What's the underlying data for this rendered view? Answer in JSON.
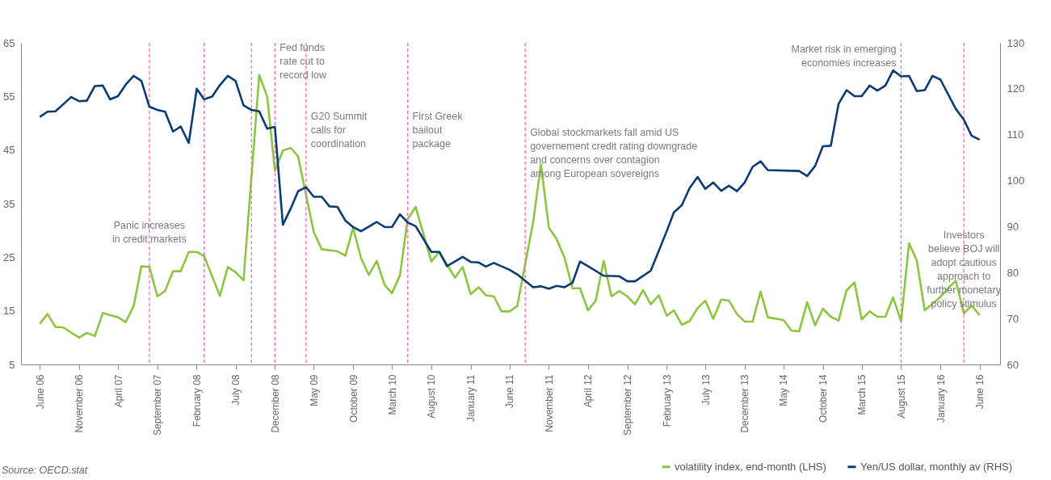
{
  "chart_data": {
    "type": "line",
    "xlim": [
      "2006-03-20",
      "2016-08-20"
    ],
    "xticks": [
      {
        "value": "2006-06",
        "label": "June 06"
      },
      {
        "value": "2006-11",
        "label": "November 06"
      },
      {
        "value": "2007-04",
        "label": "April 07"
      },
      {
        "value": "2007-09",
        "label": "September 07"
      },
      {
        "value": "2008-02",
        "label": "February 08"
      },
      {
        "value": "2008-07",
        "label": "July 08"
      },
      {
        "value": "2008-12",
        "label": "December 08"
      },
      {
        "value": "2009-05",
        "label": "May 09"
      },
      {
        "value": "2009-10",
        "label": "October 09"
      },
      {
        "value": "2010-03",
        "label": "March 10"
      },
      {
        "value": "2010-08",
        "label": "August 10"
      },
      {
        "value": "2011-01",
        "label": "January 11"
      },
      {
        "value": "2011-06",
        "label": "June 11"
      },
      {
        "value": "2011-11",
        "label": "November 11"
      },
      {
        "value": "2012-04",
        "label": "April 12"
      },
      {
        "value": "2012-09",
        "label": "September 12"
      },
      {
        "value": "2013-02",
        "label": "February 13"
      },
      {
        "value": "2013-07",
        "label": "July 13"
      },
      {
        "value": "2013-12",
        "label": "December 13"
      },
      {
        "value": "2014-05",
        "label": "May 14"
      },
      {
        "value": "2014-10",
        "label": "October 14"
      },
      {
        "value": "2015-03",
        "label": "March 15"
      },
      {
        "value": "2015-08",
        "label": "August 15"
      },
      {
        "value": "2016-01",
        "label": "January 16"
      },
      {
        "value": "2016-06",
        "label": "June 16"
      }
    ],
    "ylim": [
      5,
      65
    ],
    "yticks": [
      5,
      15,
      25,
      35,
      45,
      55,
      65
    ],
    "y2lim": [
      60,
      130
    ],
    "y2ticks": [
      60,
      70,
      80,
      90,
      100,
      110,
      120,
      130
    ],
    "grid": false,
    "legend": "bottom right",
    "line_style": "solid",
    "series": [
      {
        "name": "volatility index, end-month (LHS)",
        "color": "#8cc63f",
        "axis": "y",
        "x": [
          "2006-06",
          "2006-07",
          "2006-08",
          "2006-09",
          "2006-11",
          "2006-12",
          "2007-01",
          "2007-02",
          "2007-03",
          "2007-04",
          "2007-05",
          "2007-06",
          "2007-07",
          "2007-08",
          "2007-09",
          "2007-10",
          "2007-11",
          "2007-12",
          "2008-01",
          "2008-02",
          "2008-03",
          "2008-05",
          "2008-06",
          "2008-07",
          "2008-08",
          "2008-10",
          "2008-11",
          "2008-12",
          "2009-01",
          "2009-02",
          "2009-03",
          "2009-05",
          "2009-06",
          "2009-08",
          "2009-09",
          "2009-10",
          "2009-11",
          "2009-12",
          "2010-01",
          "2010-02",
          "2010-03",
          "2010-04",
          "2010-05",
          "2010-06",
          "2010-08",
          "2010-09",
          "2010-11",
          "2010-12",
          "2011-01",
          "2011-02",
          "2011-03",
          "2011-04",
          "2011-05",
          "2011-06",
          "2011-07",
          "2011-09",
          "2011-10",
          "2011-11",
          "2011-12",
          "2012-01",
          "2012-02",
          "2012-03",
          "2012-04",
          "2012-05",
          "2012-06",
          "2012-07",
          "2012-08",
          "2012-09",
          "2012-10",
          "2012-11",
          "2012-12",
          "2013-01",
          "2013-02",
          "2013-03",
          "2013-04",
          "2013-05",
          "2013-06",
          "2013-07",
          "2013-08",
          "2013-09",
          "2013-10",
          "2013-11",
          "2013-12",
          "2014-01",
          "2014-02",
          "2014-03",
          "2014-05",
          "2014-06",
          "2014-07",
          "2014-08",
          "2014-09",
          "2014-10",
          "2014-11",
          "2014-12",
          "2015-01",
          "2015-02",
          "2015-03",
          "2015-04",
          "2015-05",
          "2015-06",
          "2015-07",
          "2015-08",
          "2015-09",
          "2015-10",
          "2015-11",
          "2015-12",
          "2016-01",
          "2016-02",
          "2016-03",
          "2016-04",
          "2016-05",
          "2016-06"
        ],
        "values": [
          12.6,
          14.4,
          12.0,
          11.9,
          10.0,
          10.9,
          10.3,
          14.6,
          14.2,
          13.8,
          12.9,
          15.9,
          23.3,
          23.2,
          17.7,
          18.7,
          22.4,
          22.4,
          26.0,
          26.0,
          25.2,
          17.8,
          23.2,
          22.2,
          20.7,
          59.0,
          55.0,
          41.1,
          44.9,
          45.4,
          43.8,
          29.7,
          26.5,
          26.1,
          25.3,
          30.5,
          24.8,
          21.7,
          24.3,
          19.8,
          18.3,
          21.6,
          32.1,
          34.4,
          24.2,
          26.0,
          21.2,
          23.2,
          18.1,
          19.4,
          17.9,
          17.7,
          14.9,
          14.9,
          15.9,
          31.6,
          42.3,
          30.5,
          28.4,
          24.9,
          19.2,
          19.2,
          15.1,
          16.9,
          24.3,
          17.7,
          18.7,
          17.7,
          16.2,
          18.9,
          16.2,
          17.9,
          14.1,
          15.1,
          12.4,
          13.1,
          15.5,
          16.9,
          13.5,
          17.1,
          16.9,
          14.4,
          13.0,
          13.0,
          18.6,
          13.8,
          13.3,
          11.3,
          11.2,
          16.6,
          12.3,
          15.4,
          13.9,
          13.2,
          18.8,
          20.3,
          13.4,
          14.9,
          13.9,
          13.9,
          17.5,
          13.1,
          27.6,
          24.4,
          15.1,
          16.3,
          17.6,
          19.3,
          20.6,
          14.5,
          16.0,
          14.2
        ]
      },
      {
        "name": "Yen/US dollar, monthly av (RHS)",
        "color": "#0b3b74",
        "axis": "y2",
        "x": [
          "2006-06",
          "2006-07",
          "2006-08",
          "2006-10",
          "2006-11",
          "2006-12",
          "2007-01",
          "2007-02",
          "2007-03",
          "2007-04",
          "2007-05",
          "2007-06",
          "2007-07",
          "2007-08",
          "2007-09",
          "2007-10",
          "2007-11",
          "2007-12",
          "2008-01",
          "2008-02",
          "2008-03",
          "2008-04",
          "2008-05",
          "2008-06",
          "2008-07",
          "2008-08",
          "2008-09",
          "2008-10",
          "2008-11",
          "2008-12",
          "2009-01",
          "2009-02",
          "2009-03",
          "2009-04",
          "2009-05",
          "2009-06",
          "2009-07",
          "2009-08",
          "2009-09",
          "2009-10",
          "2009-11",
          "2010-01",
          "2010-02",
          "2010-03",
          "2010-04",
          "2010-05",
          "2010-06",
          "2010-08",
          "2010-09",
          "2010-10",
          "2010-12",
          "2011-01",
          "2011-02",
          "2011-03",
          "2011-04",
          "2011-06",
          "2011-07",
          "2011-09",
          "2011-10",
          "2011-11",
          "2011-12",
          "2012-01",
          "2012-02",
          "2012-03",
          "2012-04",
          "2012-06",
          "2012-08",
          "2012-09",
          "2012-10",
          "2012-12",
          "2013-02",
          "2013-03",
          "2013-04",
          "2013-05",
          "2013-06",
          "2013-07",
          "2013-08",
          "2013-09",
          "2013-10",
          "2013-11",
          "2013-12",
          "2014-01",
          "2014-02",
          "2014-03",
          "2014-07",
          "2014-08",
          "2014-09",
          "2014-10",
          "2014-11",
          "2014-12",
          "2015-01",
          "2015-02",
          "2015-03",
          "2015-04",
          "2015-05",
          "2015-06",
          "2015-07",
          "2015-08",
          "2015-09",
          "2015-10",
          "2015-11",
          "2015-12",
          "2016-01",
          "2016-03",
          "2016-04",
          "2016-05",
          "2016-06"
        ],
        "values": [
          113.9,
          115.0,
          115.1,
          118.2,
          117.3,
          117.4,
          120.6,
          120.7,
          117.7,
          118.4,
          120.9,
          122.8,
          121.7,
          116.1,
          115.4,
          115.0,
          110.7,
          111.8,
          108.2,
          120.0,
          117.7,
          118.3,
          120.8,
          122.8,
          121.7,
          116.4,
          115.4,
          115.1,
          111.3,
          111.7,
          90.4,
          94.0,
          97.7,
          98.6,
          96.5,
          96.5,
          94.4,
          94.3,
          91.3,
          89.9,
          89.0,
          91.0,
          89.9,
          89.9,
          92.7,
          90.9,
          90.1,
          84.5,
          84.5,
          81.4,
          83.4,
          82.3,
          82.2,
          81.3,
          82.1,
          80.6,
          79.6,
          76.8,
          77.0,
          76.5,
          77.1,
          76.8,
          77.8,
          82.4,
          81.4,
          79.3,
          79.2,
          78.1,
          78.1,
          80.4,
          89.0,
          93.1,
          94.7,
          98.4,
          100.8,
          98.2,
          99.6,
          97.8,
          98.9,
          97.7,
          99.6,
          103.0,
          104.2,
          102.3,
          102.1,
          101.0,
          103.2,
          107.5,
          107.6,
          116.7,
          119.7,
          118.4,
          118.4,
          120.7,
          119.6,
          120.7,
          124.0,
          122.7,
          122.8,
          119.5,
          119.7,
          122.8,
          122.0,
          115.6,
          113.3,
          109.8,
          108.9
        ]
      }
    ],
    "ref_lines": [
      {
        "axis": "x",
        "value": "2007-08",
        "color": "#ff69b4",
        "line_style": "dashed",
        "label": "Panic increases\nin credit markets"
      },
      {
        "axis": "x",
        "value": "2008-03",
        "color": "#ff69b4",
        "line_style": "dashed"
      },
      {
        "axis": "x",
        "value": "2008-09",
        "color": "#ff69b4",
        "line_style": "dashed"
      },
      {
        "axis": "x",
        "value": "2008-12",
        "color": "#ff69b4",
        "line_style": "dashed",
        "label": "Fed funds\nrate cut to\nrecord low"
      },
      {
        "axis": "x",
        "value": "2009-04",
        "color": "#ff69b4",
        "line_style": "dashed",
        "label": "G20 Summit\ncalls for\ncoordination"
      },
      {
        "axis": "x",
        "value": "2010-05",
        "color": "#ff69b4",
        "line_style": "dashed",
        "label": "First Greek\nbailout\npackage"
      },
      {
        "axis": "x",
        "value": "2011-08",
        "color": "#ff69b4",
        "line_style": "dashed",
        "label": "Global stockmarkets fall amid US\ngovernement credit rating downgrade\nand concerns over contagion\namong European sovereigns"
      },
      {
        "axis": "x",
        "value": "2015-08",
        "color": "#ff69b4",
        "line_style": "dashed",
        "label": "Market risk in emerging\neconomies increases"
      },
      {
        "axis": "x",
        "value": "2016-04",
        "color": "#ff69b4",
        "line_style": "dashed",
        "label": "Investors\nbelieve BOJ will\nadopt cautious\napproach to\nfurther monetary\npolicy stimulus"
      }
    ],
    "annotations": [
      "Source: OECD.stat"
    ]
  }
}
